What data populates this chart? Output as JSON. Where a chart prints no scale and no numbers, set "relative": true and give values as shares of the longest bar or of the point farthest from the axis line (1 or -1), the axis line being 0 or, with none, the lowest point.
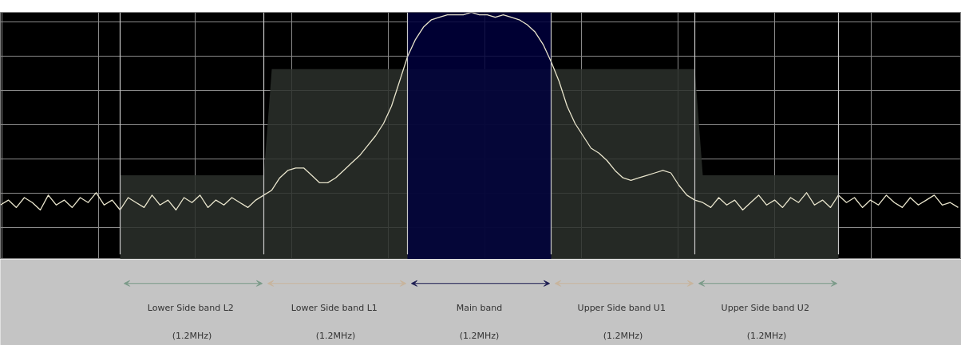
{
  "chart_data": {
    "type": "line",
    "relative": true,
    "grid": true,
    "categories": [
      null,
      null,
      null,
      null,
      null,
      null,
      null,
      null,
      null,
      null,
      null,
      null,
      null,
      null,
      null,
      null,
      null,
      null,
      null,
      null,
      null,
      null,
      null,
      null,
      null,
      null,
      null,
      null,
      null,
      null,
      null,
      null,
      null,
      null,
      null,
      null,
      null,
      null,
      null,
      null,
      null,
      null,
      null,
      null,
      null,
      null,
      null,
      null,
      null,
      null,
      null,
      null,
      null,
      null,
      null,
      null,
      null,
      null,
      null,
      null,
      null,
      null,
      null,
      null,
      null,
      null,
      null,
      null,
      null,
      null,
      null,
      null,
      null,
      null,
      null,
      null,
      null,
      null,
      null,
      null,
      null,
      null,
      null,
      null,
      null,
      null,
      null,
      null,
      null,
      null,
      null,
      null,
      null,
      null,
      null,
      null,
      null,
      null,
      null,
      null,
      null,
      null,
      null,
      null,
      null,
      null,
      null,
      null,
      null,
      null,
      null,
      null,
      null,
      null,
      null,
      null,
      null,
      null,
      null,
      null,
      null
    ],
    "series": [
      {
        "type": "area",
        "color": "#2b302b",
        "values": [
          null,
          null,
          null,
          null,
          null,
          null,
          null,
          null,
          null,
          null,
          null,
          null,
          null,
          null,
          null,
          0.34,
          0.34,
          0.34,
          0.34,
          0.34,
          0.34,
          0.34,
          0.34,
          0.34,
          0.34,
          0.34,
          0.34,
          0.34,
          0.34,
          0.34,
          0.34,
          0.34,
          0.34,
          0.34,
          0.77,
          0.77,
          0.77,
          0.77,
          0.77,
          0.77,
          0.77,
          0.77,
          0.77,
          0.77,
          0.77,
          0.77,
          0.77,
          0.77,
          0.77,
          0.77,
          0.77,
          0.77,
          0.77,
          0.77,
          0.77,
          0.77,
          0.77,
          0.77,
          0.77,
          0.77,
          0.77,
          0.77,
          0.77,
          0.77,
          0.77,
          0.77,
          0.77,
          0.77,
          0.77,
          0.77,
          0.77,
          0.77,
          0.77,
          0.77,
          0.77,
          0.77,
          0.77,
          0.77,
          0.77,
          0.77,
          0.77,
          0.77,
          0.77,
          0.77,
          0.77,
          0.77,
          0.77,
          0.77,
          0.34,
          0.34,
          0.34,
          0.34,
          0.34,
          0.34,
          0.34,
          0.34,
          0.34,
          0.34,
          0.34,
          0.34,
          0.34,
          0.34,
          0.34,
          0.34,
          0.34,
          0.34,
          null,
          null,
          null,
          null,
          null,
          null,
          null,
          null,
          null,
          null,
          null,
          null,
          null,
          null,
          null
        ]
      },
      {
        "type": "area",
        "color": "#00003c",
        "values": [
          null,
          null,
          null,
          null,
          null,
          null,
          null,
          null,
          null,
          null,
          null,
          null,
          null,
          null,
          null,
          null,
          null,
          null,
          null,
          null,
          null,
          null,
          null,
          null,
          null,
          null,
          null,
          null,
          null,
          null,
          null,
          null,
          null,
          null,
          null,
          null,
          null,
          null,
          null,
          null,
          null,
          null,
          null,
          null,
          null,
          null,
          null,
          null,
          null,
          null,
          null,
          1.0,
          1.0,
          1.0,
          1.0,
          1.0,
          1.0,
          1.0,
          1.0,
          1.0,
          1.0,
          1.0,
          1.0,
          1.0,
          1.0,
          1.0,
          1.0,
          1.0,
          1.0,
          1.0,
          null,
          null,
          null,
          null,
          null,
          null,
          null,
          null,
          null,
          null,
          null,
          null,
          null,
          null,
          null,
          null,
          null,
          null,
          null,
          null,
          null,
          null,
          null,
          null,
          null,
          null,
          null,
          null,
          null,
          null,
          null,
          null,
          null,
          null,
          null,
          null,
          null,
          null,
          null,
          null,
          null,
          null,
          null,
          null,
          null,
          null,
          null,
          null,
          null,
          null,
          null
        ]
      },
      {
        "color": "#e8e4cc",
        "values": [
          0.22,
          0.24,
          0.21,
          0.25,
          0.23,
          0.2,
          0.26,
          0.22,
          0.24,
          0.21,
          0.25,
          0.23,
          0.27,
          0.22,
          0.24,
          0.2,
          0.25,
          0.23,
          0.21,
          0.26,
          0.22,
          0.24,
          0.2,
          0.25,
          0.23,
          0.26,
          0.21,
          0.24,
          0.22,
          0.25,
          0.23,
          0.21,
          0.24,
          0.26,
          0.28,
          0.33,
          0.36,
          0.37,
          0.37,
          0.34,
          0.31,
          0.31,
          0.33,
          0.36,
          0.39,
          0.42,
          0.46,
          0.5,
          0.55,
          0.62,
          0.72,
          0.82,
          0.89,
          0.94,
          0.97,
          0.98,
          0.99,
          0.99,
          0.99,
          1.0,
          0.99,
          0.99,
          0.98,
          0.99,
          0.98,
          0.97,
          0.95,
          0.92,
          0.87,
          0.8,
          0.72,
          0.62,
          0.55,
          0.5,
          0.45,
          0.43,
          0.4,
          0.36,
          0.33,
          0.32,
          0.33,
          0.34,
          0.35,
          0.36,
          0.35,
          0.3,
          0.26,
          0.24,
          0.23,
          0.21,
          0.25,
          0.22,
          0.24,
          0.2,
          0.23,
          0.26,
          0.22,
          0.24,
          0.21,
          0.25,
          0.23,
          0.27,
          0.22,
          0.24,
          0.21,
          0.26,
          0.23,
          0.25,
          0.21,
          0.24,
          0.22,
          0.26,
          0.23,
          0.21,
          0.25,
          0.22,
          0.24,
          0.26,
          0.22,
          0.23,
          0.21
        ]
      }
    ],
    "annotations": [
      "Lower Side  band L2\n(1.2MHz)",
      "Lower Side  band L1\n(1.2MHz)",
      "Main band\n(1.2MHz)",
      "Upper Side  band U1\n(1.2MHz)",
      "Upper Side  band U2\n(1.2MHz)"
    ]
  }
}
